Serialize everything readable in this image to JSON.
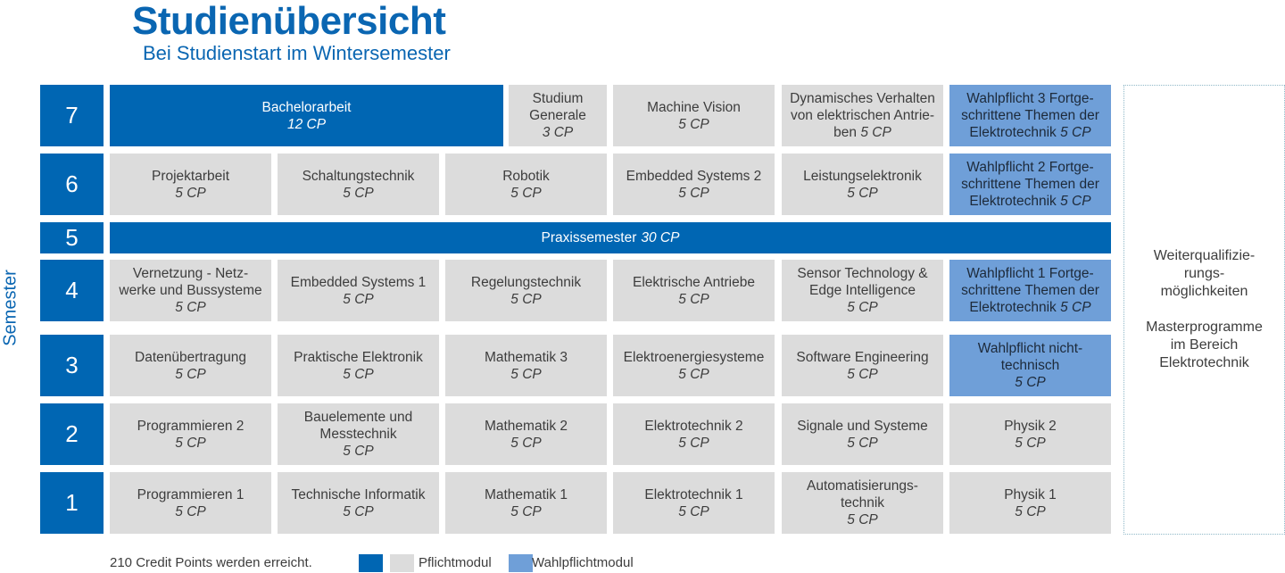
{
  "header": {
    "title": "Studienübersicht",
    "subtitle": "Bei Studienstart im Wintersemester"
  },
  "axis_label": "Semester",
  "semester_numbers": [
    "7",
    "6",
    "5",
    "4",
    "3",
    "2",
    "1"
  ],
  "colors": {
    "pflicht_dark": "#0066b3",
    "pflicht_grey": "#dcdcdc",
    "wahlpflicht": "#6f9fd8",
    "title_blue": "#0a66b2"
  },
  "semesters": {
    "s7": {
      "bachelorarbeit": {
        "name": "Bachelorarbeit",
        "cp": "12 CP"
      },
      "studium_generale": {
        "name": "Studium Generale",
        "cp": "3 CP"
      },
      "machine_vision": {
        "name": "Machine Vision",
        "cp": "5 CP"
      },
      "dynamisches": {
        "name_l1": "Dynamisches Verhalten",
        "name_l2": "von elektrischen Antrie-",
        "name_l3": "ben",
        "cp": "5 CP"
      },
      "wahlpflicht3": {
        "name_l1": "Wahlpflicht 3 Fortge-",
        "name_l2": "schrittene Themen der",
        "name_l3": "Elektrotechnik",
        "cp": "5 CP"
      }
    },
    "s6": {
      "projektarbeit": {
        "name": "Projektarbeit",
        "cp": "5 CP"
      },
      "schaltungstechnik": {
        "name": "Schaltungstechnik",
        "cp": "5 CP"
      },
      "robotik": {
        "name": "Robotik",
        "cp": "5 CP"
      },
      "embedded2": {
        "name": "Embedded Systems 2",
        "cp": "5 CP"
      },
      "leistungselektronik": {
        "name": "Leistungselektronik",
        "cp": "5 CP"
      },
      "wahlpflicht2": {
        "name_l1": "Wahlpflicht 2 Fortge-",
        "name_l2": "schrittene Themen der",
        "name_l3": "Elektrotechnik",
        "cp": "5 CP"
      }
    },
    "s5": {
      "praxissemester": {
        "name": "Praxissemester",
        "cp": "30 CP"
      }
    },
    "s4": {
      "vernetzung": {
        "name_l1": "Vernetzung - Netz-",
        "name_l2": "werke und Bussysteme",
        "cp": "5 CP"
      },
      "embedded1": {
        "name": "Embedded Systems 1",
        "cp": "5 CP"
      },
      "regelungstechnik": {
        "name": "Regelungstechnik",
        "cp": "5 CP"
      },
      "elektrische_antriebe": {
        "name": "Elektrische Antriebe",
        "cp": "5 CP"
      },
      "sensor": {
        "name_l1": "Sensor Technology &",
        "name_l2": "Edge Intelligence",
        "cp": "5 CP"
      },
      "wahlpflicht1": {
        "name_l1": "Wahlpflicht 1 Fortge-",
        "name_l2": "schrittene Themen der",
        "name_l3": "Elektrotechnik",
        "cp": "5 CP"
      }
    },
    "s3": {
      "datenuebertragung": {
        "name": "Datenübertragung",
        "cp": "5 CP"
      },
      "praktische_elektronik": {
        "name": "Praktische Elektronik",
        "cp": "5 CP"
      },
      "mathematik3": {
        "name": "Mathematik 3",
        "cp": "5 CP"
      },
      "elektroenergie": {
        "name": "Elektroenergiesysteme",
        "cp": "5 CP"
      },
      "software_engineering": {
        "name": "Software Engineering",
        "cp": "5 CP"
      },
      "wahlpflicht_nt": {
        "name_l1": "Wahlpflicht nicht-",
        "name_l2": "technisch",
        "cp": "5 CP"
      }
    },
    "s2": {
      "programmieren2": {
        "name": "Programmieren 2",
        "cp": "5 CP"
      },
      "bauelemente": {
        "name_l1": "Bauelemente und",
        "name_l2": "Messtechnik",
        "cp": "5 CP"
      },
      "mathematik2": {
        "name": "Mathematik 2",
        "cp": "5 CP"
      },
      "elektrotechnik2": {
        "name": "Elektrotechnik 2",
        "cp": "5 CP"
      },
      "signale": {
        "name": "Signale und Systeme",
        "cp": "5 CP"
      },
      "physik2": {
        "name": "Physik 2",
        "cp": "5 CP"
      }
    },
    "s1": {
      "programmieren1": {
        "name": "Programmieren 1",
        "cp": "5 CP"
      },
      "technische_informatik": {
        "name": "Technische Informatik",
        "cp": "5 CP"
      },
      "mathematik1": {
        "name": "Mathematik 1",
        "cp": "5 CP"
      },
      "elektrotechnik1": {
        "name": "Elektrotechnik 1",
        "cp": "5 CP"
      },
      "automatisierung": {
        "name_l1": "Automatisierungs-",
        "name_l2": "technik",
        "cp": "5 CP"
      },
      "physik1": {
        "name": "Physik 1",
        "cp": "5 CP"
      }
    }
  },
  "side_box": {
    "line1": "Weiterqualifizie-",
    "line2": "rungs-",
    "line3": "möglichkeiten",
    "line4": "Masterprogramme",
    "line5": "im Bereich",
    "line6": "Elektrotechnik"
  },
  "legend": {
    "credits_text": "210 Credit Points werden erreicht.",
    "pflicht": "Pflichtmodul",
    "wahlpflicht": "Wahlpflichtmodul"
  }
}
